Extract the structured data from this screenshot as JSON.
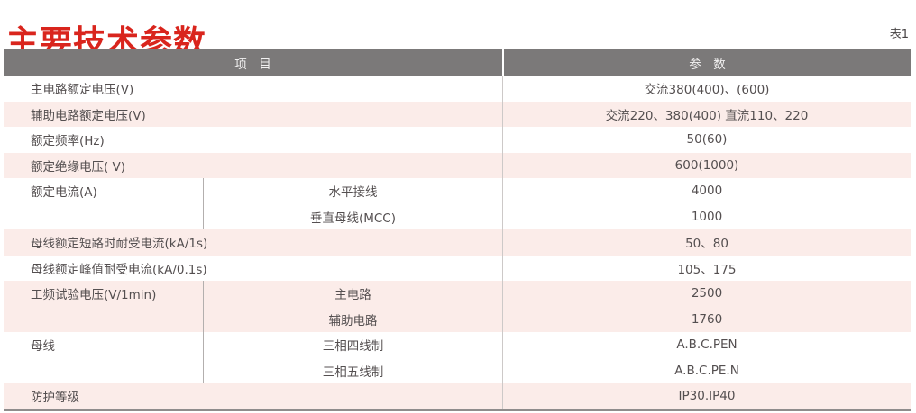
{
  "page": {
    "title": "主要技术参数",
    "table_tag": "表1"
  },
  "table": {
    "header": {
      "item": "项　目",
      "param": "参　数"
    },
    "rows": [
      {
        "label": "主电路额定电压(V)",
        "value": "交流380(400)、(600)"
      },
      {
        "label": "辅助电路额定电压(V)",
        "value": "交流220、380(400) 直流110、220"
      },
      {
        "label": "额定频率(Hz)",
        "value": "50(60)"
      },
      {
        "label": "额定绝缘电压( V)",
        "value": "600(1000)"
      },
      {
        "label": "额定电流(A)",
        "subrows": [
          {
            "sublabel": "水平接线",
            "value": "4000"
          },
          {
            "sublabel": "垂直母线(MCC)",
            "value": "1000"
          }
        ]
      },
      {
        "label": "母线额定短路时耐受电流(kA/1s)",
        "value": "50、80"
      },
      {
        "label": "母线额定峰值耐受电流(kA/0.1s)",
        "value": "105、175"
      },
      {
        "label": "工频试验电压(V/1min)",
        "subrows": [
          {
            "sublabel": "主电路",
            "value": "2500"
          },
          {
            "sublabel": "辅助电路",
            "value": "1760"
          }
        ]
      },
      {
        "label": "母线",
        "subrows": [
          {
            "sublabel": "三相四线制",
            "value": "A.B.C.PEN"
          },
          {
            "sublabel": "三相五线制",
            "value": "A.B.C.PE.N"
          }
        ]
      },
      {
        "label": "防护等级",
        "value": "IP30.IP40"
      }
    ]
  },
  "colors": {
    "title_red": "#d9251d",
    "header_gray": "#7b7979",
    "row_pink": "#fbece9",
    "text_dark": "#544f50",
    "divider": "#cdc9c8",
    "divider_strong": "#b3afae",
    "table_border": "#8f8c8c"
  }
}
